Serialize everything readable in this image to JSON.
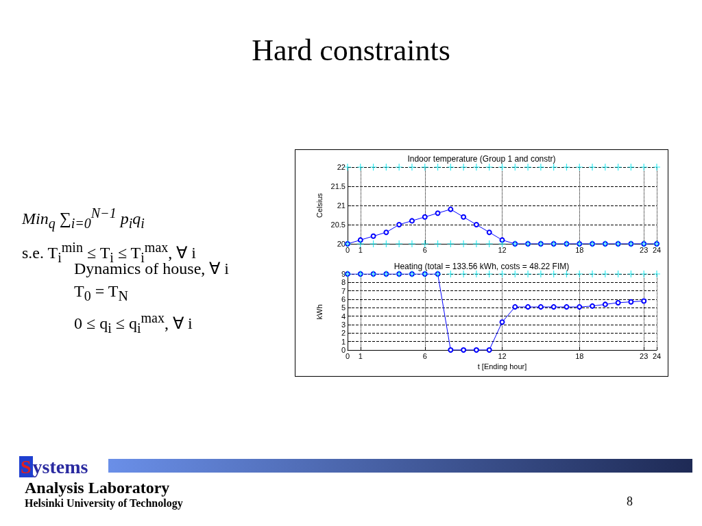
{
  "chart_data": [
    {
      "type": "line",
      "title": "Indoor temperature (Group 1 and constr)",
      "ylabel": "Celsius",
      "annotations": [
        "Hard constraints",
        "Min$_{q}$   ∑$_{i=0}$$^{N−1}$ p$_{i}$q$_{i}$",
        "s.e.   T$_{i}$$^{min}$ ≤ T$_{i}$ ≤ T$_{i}$$^{max}$, ∀ i",
        "Dynamics of house, ∀ i",
        "T$_{0}$ = T$_{N}$",
        "0 ≤ q$_{i}$ ≤ q$_{i}$$^{max}$, ∀ i",
        "Systems",
        "Analysis Laboratory",
        "Helsinki University of Technology",
        "8"
      ],
      "x": [
        0,
        1,
        2,
        3,
        4,
        5,
        6,
        7,
        8,
        9,
        10,
        11,
        12,
        13,
        14,
        15,
        16,
        17,
        18,
        19,
        20,
        21,
        22,
        23,
        24
      ],
      "series": [
        {
          "type": "scatter",
          "marker": "cross",
          "color": "#00e5ee",
          "values": [
            22,
            22,
            22,
            22,
            22,
            22,
            22,
            22,
            22,
            22,
            22,
            22,
            22,
            22,
            22,
            22,
            22,
            22,
            22,
            22,
            22,
            22,
            22,
            22,
            22
          ]
        },
        {
          "type": "scatter",
          "marker": "cross",
          "color": "#00e5ee",
          "values": [
            20,
            20,
            20,
            20,
            20,
            20,
            20,
            20,
            20,
            20,
            20,
            20,
            20,
            20,
            20,
            20,
            20,
            20,
            20,
            20,
            20,
            20,
            20,
            20,
            20
          ]
        },
        {
          "color": "#0000ff",
          "values": [
            20,
            20.1,
            20.2,
            20.3,
            20.5,
            20.6,
            20.7,
            20.8,
            20.9,
            20.7,
            20.5,
            20.3,
            20.1,
            20,
            20,
            20,
            20,
            20,
            20,
            20,
            20,
            20,
            20,
            20,
            20
          ]
        }
      ],
      "marker": "circle",
      "line_style": "solid",
      "grid": true,
      "xlim": [
        0,
        24
      ],
      "xticks": [
        0,
        1,
        6,
        12,
        18,
        23,
        24
      ],
      "ylim": [
        20,
        22
      ],
      "yticks": [
        20,
        20.5,
        21,
        21.5,
        22
      ]
    },
    {
      "type": "line",
      "title": "Heating (total = 133.56 kWh, costs = 48.22 FIM)",
      "ylabel": "kWh",
      "xlabel": "t [Ending hour]",
      "x": [
        0,
        1,
        2,
        3,
        4,
        5,
        6,
        7,
        8,
        9,
        10,
        11,
        12,
        13,
        14,
        15,
        16,
        17,
        18,
        19,
        20,
        21,
        22,
        23,
        24
      ],
      "series": [
        {
          "type": "scatter",
          "marker": "cross",
          "color": "#00e5ee",
          "values": [
            9,
            9,
            9,
            9,
            9,
            9,
            9,
            9,
            9,
            9,
            9,
            9,
            9,
            9,
            9,
            9,
            9,
            9,
            9,
            9,
            9,
            9,
            9,
            9,
            9
          ]
        },
        {
          "color": "#0000ff",
          "values": [
            9,
            9,
            9,
            9,
            9,
            9,
            9,
            9,
            0,
            0,
            0,
            0,
            3.3,
            5.1,
            5.1,
            5.1,
            5.1,
            5.1,
            5.1,
            5.2,
            5.4,
            5.6,
            5.7,
            5.8,
            null
          ]
        }
      ],
      "marker": "circle",
      "line_style": "solid",
      "grid": true,
      "xlim": [
        0,
        24
      ],
      "xticks": [
        0,
        1,
        6,
        12,
        18,
        23,
        24
      ],
      "ylim": [
        0,
        9
      ],
      "yticks": [
        0,
        1,
        2,
        3,
        4,
        5,
        6,
        7,
        8,
        9
      ]
    }
  ]
}
